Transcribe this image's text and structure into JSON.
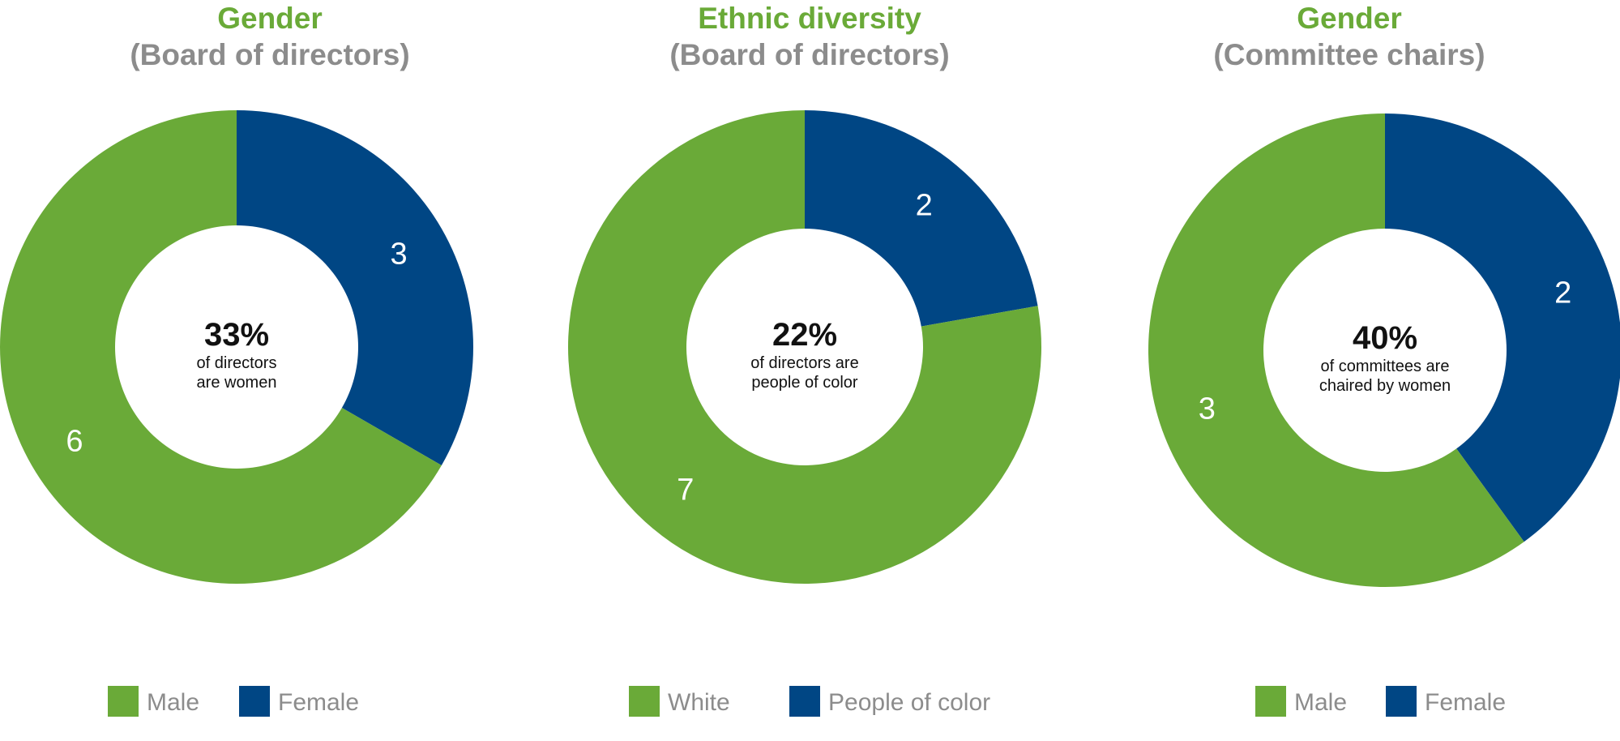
{
  "colors": {
    "green": "#6aaa38",
    "blue": "#004684",
    "title_green": "#6aaa38",
    "title_gray": "#8c8c8c"
  },
  "chart_data": [
    {
      "type": "pie",
      "donut": true,
      "title": "Gender",
      "subtitle": "(Board of directors)",
      "center_value": "33%",
      "center_line1": "of directors",
      "center_line2": "are women",
      "slices": [
        {
          "name": "Male",
          "value": 6,
          "label": "6",
          "color": "#6aaa38"
        },
        {
          "name": "Female",
          "value": 3,
          "label": "3",
          "color": "#004684"
        }
      ],
      "legend": [
        {
          "name": "Male",
          "color": "#6aaa38"
        },
        {
          "name": "Female",
          "color": "#004684"
        }
      ],
      "legend_position": "bottom"
    },
    {
      "type": "pie",
      "donut": true,
      "title": "Ethnic diversity",
      "subtitle": "(Board of directors)",
      "center_value": "22%",
      "center_line1": "of directors are",
      "center_line2": "people of color",
      "slices": [
        {
          "name": "White",
          "value": 7,
          "label": "7",
          "color": "#6aaa38"
        },
        {
          "name": "People of color",
          "value": 2,
          "label": "2",
          "color": "#004684"
        }
      ],
      "legend": [
        {
          "name": "White",
          "color": "#6aaa38"
        },
        {
          "name": "People of color",
          "color": "#004684"
        }
      ],
      "legend_position": "bottom"
    },
    {
      "type": "pie",
      "donut": true,
      "title": "Gender",
      "subtitle": "(Committee chairs)",
      "center_value": "40%",
      "center_line1": "of committees are",
      "center_line2": "chaired by women",
      "slices": [
        {
          "name": "Male",
          "value": 3,
          "label": "3",
          "color": "#6aaa38"
        },
        {
          "name": "Female",
          "value": 2,
          "label": "2",
          "color": "#004684"
        }
      ],
      "legend": [
        {
          "name": "Male",
          "color": "#6aaa38"
        },
        {
          "name": "Female",
          "color": "#004684"
        }
      ],
      "legend_position": "bottom"
    }
  ]
}
